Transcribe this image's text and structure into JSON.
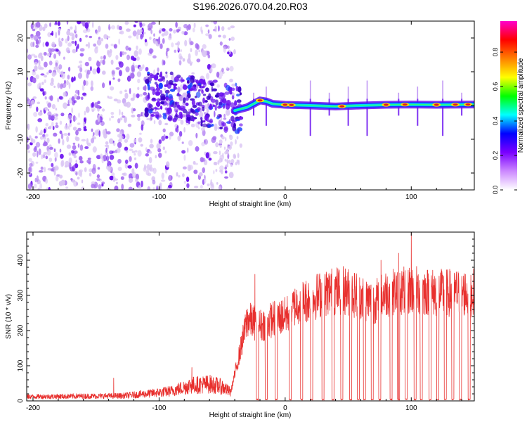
{
  "figure_title": "S196.2026.070.04.20.R03",
  "colors": {
    "snr_line": "#e8302e",
    "axis": "#000000",
    "spectrum_faint": "#d9c4f4",
    "spectrum_mid": "#a66ef0",
    "spectrum_strong": "#6a10f0",
    "ridge_low": "#00d0ff",
    "ridge_high": "#e0201e"
  },
  "chart_data": [
    {
      "type": "heatmap",
      "title": "",
      "xlabel": "Height of straight line (km)",
      "ylabel": "Frequency (Hz)",
      "xlim": [
        -205,
        150
      ],
      "ylim": [
        -25,
        25
      ],
      "x_ticks": [
        -200,
        -100,
        0,
        100
      ],
      "x_tick_labels": [
        "-200",
        "-100",
        "0",
        "100"
      ],
      "y_ticks": [
        -20,
        -10,
        0,
        10,
        20
      ],
      "y_tick_labels": [
        "-20",
        "-10",
        "0",
        "10",
        "20"
      ],
      "colorbar": {
        "label": "Normalized spectral amplitude",
        "range": [
          0.0,
          0.98
        ],
        "ticks": [
          0.0,
          0.2,
          0.4,
          0.6,
          0.8
        ],
        "tick_labels": [
          "0.0",
          "0.2",
          "0.4",
          "0.6",
          "0.8"
        ],
        "colormap": [
          "#ffffff",
          "#cc88ff",
          "#7a00ff",
          "#0000ff",
          "#00ffff",
          "#00ff00",
          "#ffff00",
          "#ff8000",
          "#ff0000",
          "#ff00cc"
        ]
      },
      "noise_region_x": [
        -205,
        -40
      ],
      "turbulent_region_x": [
        -110,
        -35
      ],
      "signal_ridge": {
        "x_start": -40,
        "x_end": 150,
        "points": [
          {
            "x": -40,
            "y": -1.5
          },
          {
            "x": -35,
            "y": -1
          },
          {
            "x": -30,
            "y": -0.5
          },
          {
            "x": -25,
            "y": 0.5
          },
          {
            "x": -20,
            "y": 1.5
          },
          {
            "x": -15,
            "y": 1.2
          },
          {
            "x": -10,
            "y": 0.5
          },
          {
            "x": 0,
            "y": 0.2
          },
          {
            "x": 20,
            "y": 0
          },
          {
            "x": 40,
            "y": -0.3
          },
          {
            "x": 60,
            "y": 0
          },
          {
            "x": 80,
            "y": 0.2
          },
          {
            "x": 100,
            "y": 0.3
          },
          {
            "x": 120,
            "y": 0.2
          },
          {
            "x": 150,
            "y": 0.3
          }
        ],
        "hot_spots_x": [
          -20,
          0,
          5,
          45,
          80,
          95,
          120,
          135,
          145
        ]
      },
      "vertical_streaks_x": [
        -25,
        -15,
        20,
        35,
        50,
        65,
        90,
        105,
        125,
        140
      ]
    },
    {
      "type": "line",
      "title": "",
      "xlabel": "Height of straight line (km)",
      "ylabel": "SNR (10 * v/v)",
      "xlim": [
        -205,
        150
      ],
      "ylim": [
        0,
        480
      ],
      "x_ticks": [
        -200,
        -100,
        0,
        100
      ],
      "x_tick_labels": [
        "-200",
        "-100",
        "0",
        "100"
      ],
      "y_ticks": [
        0,
        100,
        200,
        300,
        400
      ],
      "y_tick_labels": [
        "0",
        "100",
        "200",
        "300",
        "400"
      ],
      "series": [
        {
          "name": "SNR",
          "envelope": [
            {
              "x": -205,
              "y": 15
            },
            {
              "x": -130,
              "y": 18
            },
            {
              "x": -110,
              "y": 25
            },
            {
              "x": -90,
              "y": 35
            },
            {
              "x": -75,
              "y": 55
            },
            {
              "x": -60,
              "y": 60
            },
            {
              "x": -50,
              "y": 50
            },
            {
              "x": -43,
              "y": 30
            },
            {
              "x": -30,
              "y": 250
            },
            {
              "x": -20,
              "y": 230
            },
            {
              "x": -10,
              "y": 250
            },
            {
              "x": 0,
              "y": 260
            },
            {
              "x": 10,
              "y": 300
            },
            {
              "x": 20,
              "y": 310
            },
            {
              "x": 30,
              "y": 330
            },
            {
              "x": 45,
              "y": 340
            },
            {
              "x": 60,
              "y": 320
            },
            {
              "x": 70,
              "y": 300
            },
            {
              "x": 80,
              "y": 330
            },
            {
              "x": 100,
              "y": 340
            },
            {
              "x": 120,
              "y": 330
            },
            {
              "x": 150,
              "y": 330
            }
          ],
          "dropout_x": [
            -22,
            -15,
            -7,
            4,
            13,
            21,
            30,
            38,
            45,
            52,
            58,
            63,
            69,
            75,
            84,
            90,
            96,
            103,
            108,
            115,
            121,
            127,
            133,
            139,
            146
          ],
          "spikes": [
            {
              "x": -24,
              "y": 360
            },
            {
              "x": 100,
              "y": 480
            },
            {
              "x": 90,
              "y": 420
            },
            {
              "x": 76,
              "y": 400
            },
            {
              "x": -136,
              "y": 65
            },
            {
              "x": -74,
              "y": 95
            }
          ]
        }
      ]
    }
  ]
}
